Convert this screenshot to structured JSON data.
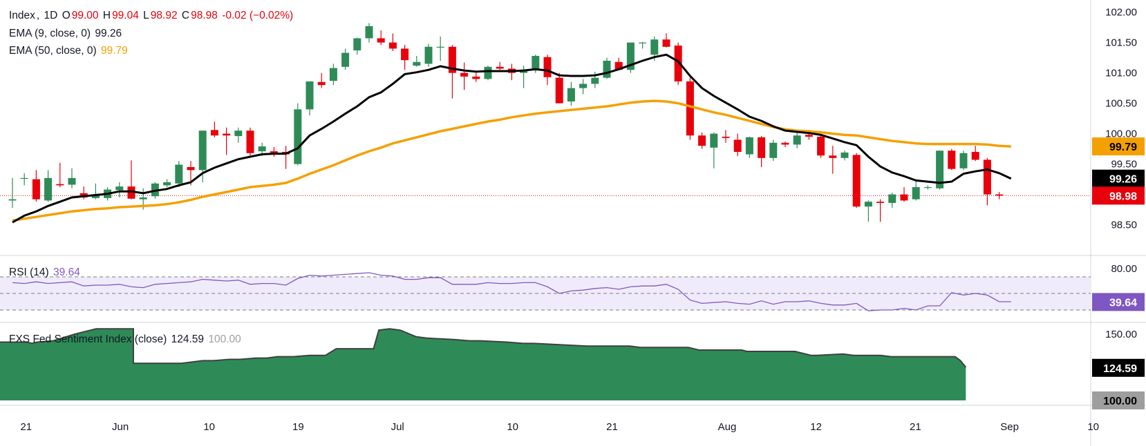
{
  "legend": {
    "symbol": "Index",
    "interval": "1D",
    "open_label": "O",
    "open": "99.00",
    "high_label": "H",
    "high": "99.04",
    "low_label": "L",
    "low": "98.92",
    "close_label": "C",
    "close": "98.98",
    "change": "-0.02 (−0.02%)",
    "ema9_label": "EMA (9, close, 0)",
    "ema9_value": "99.26",
    "ema50_label": "EMA (50, close, 0)",
    "ema50_value": "99.79",
    "rsi_label": "RSI (14)",
    "rsi_value": "39.64",
    "fxs_label": "FXS Fed Sentiment Index (close)",
    "fxs_value": "124.59",
    "fxs_baseline": "100.00"
  },
  "price_badges": [
    {
      "label": "99.79",
      "value": 99.79,
      "bg": "#f4a000",
      "fg": "#000000"
    },
    {
      "label": "99.26",
      "value": 99.26,
      "bg": "#000000",
      "fg": "#ffffff"
    },
    {
      "label": "98.98",
      "value": 98.98,
      "bg": "#e8000b",
      "fg": "#ffffff"
    }
  ],
  "rsi_badge": {
    "label": "39.64",
    "value": 39.64,
    "bg": "#7e57c2",
    "fg": "#ffffff"
  },
  "fxs_badges": [
    {
      "label": "124.59",
      "value": 124.59,
      "bg": "#000000",
      "fg": "#ffffff"
    },
    {
      "label": "100.00",
      "value": 100.0,
      "bg": "#9e9e9e",
      "fg": "#000000"
    }
  ],
  "colors": {
    "up": "#2e8b57",
    "down": "#e8000b",
    "ema9": "#000000",
    "ema50": "#f4a000",
    "rsi": "#7e57c2",
    "rsi_band": "#f0ebfa",
    "fxs_fill": "#2e8b57",
    "fxs_line": "#404040",
    "grid": "#e0e3eb"
  },
  "chart_data": [
    {
      "type": "candlestick",
      "title": "Index, 1D",
      "x_tick_labels": [
        "21",
        "Jun",
        "10",
        "19",
        "Jul",
        "10",
        "21",
        "Aug",
        "12",
        "21",
        "Sep",
        "10"
      ],
      "y_ticks": [
        "102.00",
        "101.50",
        "101.00",
        "100.50",
        "100.00",
        "99.50",
        "98.50"
      ],
      "ylim": [
        98.2,
        102.2
      ],
      "last_price_line": 98.98,
      "candles": [
        [
          98.9,
          99.27,
          98.78,
          98.92
        ],
        [
          99.27,
          99.35,
          99.15,
          99.27
        ],
        [
          99.25,
          99.4,
          98.88,
          98.92
        ],
        [
          98.9,
          99.4,
          98.88,
          99.27
        ],
        [
          99.17,
          99.52,
          99.12,
          99.15
        ],
        [
          99.16,
          99.43,
          99.1,
          99.27
        ],
        [
          99.02,
          99.13,
          98.92,
          98.95
        ],
        [
          98.94,
          99.18,
          98.92,
          99.0
        ],
        [
          98.94,
          99.12,
          98.9,
          99.08
        ],
        [
          99.07,
          99.2,
          98.95,
          99.13
        ],
        [
          99.13,
          99.56,
          98.92,
          98.93
        ],
        [
          98.92,
          99.1,
          98.75,
          98.95
        ],
        [
          98.97,
          99.2,
          98.93,
          99.18
        ],
        [
          99.15,
          99.25,
          99.12,
          99.2
        ],
        [
          99.18,
          99.55,
          99.12,
          99.49
        ],
        [
          99.45,
          99.55,
          99.15,
          99.4
        ],
        [
          99.4,
          100.05,
          99.2,
          100.05
        ],
        [
          100.06,
          100.2,
          99.94,
          99.97
        ],
        [
          100.0,
          100.1,
          99.65,
          99.97
        ],
        [
          99.96,
          100.1,
          99.85,
          100.05
        ],
        [
          100.05,
          100.1,
          99.64,
          99.68
        ],
        [
          99.71,
          99.85,
          99.63,
          99.79
        ],
        [
          99.71,
          99.78,
          99.62,
          99.67
        ],
        [
          99.7,
          99.8,
          99.42,
          99.66
        ],
        [
          99.5,
          100.5,
          99.48,
          100.4
        ],
        [
          100.4,
          100.86,
          100.3,
          100.86
        ],
        [
          100.85,
          101.0,
          100.75,
          100.8
        ],
        [
          100.87,
          101.15,
          100.8,
          101.08
        ],
        [
          101.1,
          101.4,
          101.05,
          101.33
        ],
        [
          101.37,
          101.58,
          101.3,
          101.57
        ],
        [
          101.57,
          101.82,
          101.5,
          101.77
        ],
        [
          101.57,
          101.7,
          101.46,
          101.5
        ],
        [
          101.5,
          101.65,
          101.36,
          101.4
        ],
        [
          101.4,
          101.46,
          101.05,
          101.21
        ],
        [
          101.12,
          101.28,
          101.1,
          101.18
        ],
        [
          101.15,
          101.48,
          101.1,
          101.43
        ],
        [
          101.43,
          101.6,
          101.2,
          101.43
        ],
        [
          101.43,
          101.46,
          100.58,
          101.0
        ],
        [
          101.0,
          101.17,
          100.72,
          100.94
        ],
        [
          100.94,
          101.0,
          100.85,
          100.9
        ],
        [
          100.9,
          101.12,
          100.88,
          101.1
        ],
        [
          101.1,
          101.18,
          101.05,
          101.07
        ],
        [
          101.07,
          101.15,
          100.88,
          101.0
        ],
        [
          101.0,
          101.12,
          100.75,
          101.04
        ],
        [
          101.04,
          101.3,
          101.0,
          101.28
        ],
        [
          101.26,
          101.3,
          100.8,
          100.93
        ],
        [
          100.92,
          101.0,
          100.5,
          100.5
        ],
        [
          100.53,
          100.85,
          100.46,
          100.75
        ],
        [
          100.75,
          100.9,
          100.65,
          100.82
        ],
        [
          100.82,
          101.02,
          100.75,
          100.92
        ],
        [
          100.92,
          101.25,
          100.9,
          101.2
        ],
        [
          101.18,
          101.25,
          101.05,
          101.05
        ],
        [
          101.05,
          101.5,
          101.0,
          101.5
        ],
        [
          101.5,
          101.51,
          101.4,
          101.5
        ],
        [
          101.3,
          101.6,
          101.2,
          101.55
        ],
        [
          101.55,
          101.65,
          101.42,
          101.43
        ],
        [
          101.45,
          101.5,
          100.8,
          100.86
        ],
        [
          100.86,
          100.92,
          99.9,
          99.97
        ],
        [
          99.97,
          100.02,
          99.75,
          99.8
        ],
        [
          99.77,
          100.02,
          99.43,
          100.0
        ],
        [
          99.95,
          100.06,
          99.85,
          99.93
        ],
        [
          99.9,
          100.0,
          99.63,
          99.7
        ],
        [
          99.66,
          99.95,
          99.6,
          99.94
        ],
        [
          99.94,
          99.96,
          99.45,
          99.6
        ],
        [
          99.6,
          99.9,
          99.55,
          99.85
        ],
        [
          99.85,
          99.87,
          99.78,
          99.82
        ],
        [
          99.82,
          100.05,
          99.76,
          99.97
        ],
        [
          99.98,
          100.06,
          99.9,
          99.95
        ],
        [
          99.95,
          99.98,
          99.6,
          99.64
        ],
        [
          99.64,
          99.8,
          99.34,
          99.6
        ],
        [
          99.6,
          99.72,
          99.56,
          99.69
        ],
        [
          99.65,
          99.68,
          98.78,
          98.8
        ],
        [
          98.8,
          98.9,
          98.55,
          98.88
        ],
        [
          98.88,
          98.92,
          98.55,
          98.86
        ],
        [
          98.86,
          99.03,
          98.78,
          99.0
        ],
        [
          99.0,
          99.12,
          98.88,
          98.9
        ],
        [
          98.92,
          99.25,
          98.9,
          99.12
        ],
        [
          99.12,
          99.15,
          99.08,
          99.12
        ],
        [
          99.1,
          99.72,
          99.08,
          99.72
        ],
        [
          99.72,
          99.75,
          99.4,
          99.42
        ],
        [
          99.43,
          99.72,
          99.4,
          99.68
        ],
        [
          99.7,
          99.8,
          99.55,
          99.57
        ],
        [
          99.57,
          99.6,
          98.82,
          99.0
        ],
        [
          99.0,
          99.04,
          98.92,
          98.98
        ]
      ],
      "ema9": [
        98.54,
        98.65,
        98.72,
        98.81,
        98.88,
        98.95,
        98.97,
        98.99,
        99.01,
        99.05,
        99.05,
        99.02,
        99.06,
        99.09,
        99.15,
        99.2,
        99.35,
        99.44,
        99.51,
        99.58,
        99.62,
        99.66,
        99.67,
        99.67,
        99.76,
        99.97,
        100.08,
        100.2,
        100.33,
        100.45,
        100.6,
        100.68,
        100.82,
        100.98,
        101.01,
        101.05,
        101.11,
        101.07,
        101.04,
        101.02,
        101.03,
        101.03,
        101.03,
        101.04,
        101.06,
        101.04,
        100.96,
        100.95,
        100.95,
        100.96,
        101.0,
        101.06,
        101.13,
        101.2,
        101.26,
        101.3,
        101.19,
        100.95,
        100.75,
        100.62,
        100.51,
        100.4,
        100.28,
        100.21,
        100.12,
        100.05,
        100.03,
        100.01,
        99.98,
        99.92,
        99.86,
        99.81,
        99.62,
        99.46,
        99.36,
        99.3,
        99.23,
        99.21,
        99.19,
        99.21,
        99.34,
        99.38,
        99.41,
        99.35,
        99.26
      ],
      "ema50": [
        98.57,
        98.6,
        98.63,
        98.66,
        98.69,
        98.72,
        98.74,
        98.76,
        98.77,
        98.79,
        98.8,
        98.81,
        98.82,
        98.84,
        98.87,
        98.91,
        98.96,
        99.0,
        99.04,
        99.08,
        99.12,
        99.14,
        99.16,
        99.19,
        99.26,
        99.34,
        99.41,
        99.48,
        99.56,
        99.64,
        99.71,
        99.77,
        99.84,
        99.89,
        99.94,
        99.99,
        100.04,
        100.08,
        100.12,
        100.16,
        100.2,
        100.23,
        100.27,
        100.3,
        100.33,
        100.35,
        100.37,
        100.39,
        100.41,
        100.43,
        100.45,
        100.48,
        100.51,
        100.53,
        100.54,
        100.53,
        100.5,
        100.45,
        100.4,
        100.35,
        100.31,
        100.26,
        100.21,
        100.16,
        100.11,
        100.07,
        100.05,
        100.04,
        100.02,
        100.0,
        99.98,
        99.97,
        99.94,
        99.91,
        99.88,
        99.86,
        99.84,
        99.83,
        99.83,
        99.83,
        99.83,
        99.83,
        99.82,
        99.8,
        99.79
      ]
    },
    {
      "type": "line",
      "title": "RSI (14)",
      "y_ticks": [
        "80.00"
      ],
      "ylim": [
        20,
        80
      ],
      "band": [
        30,
        70
      ],
      "mid": 50,
      "values": [
        63,
        62,
        64,
        62,
        63,
        64,
        59,
        60,
        60,
        61,
        58,
        57,
        61,
        62,
        63,
        64,
        67,
        66,
        65,
        66,
        61,
        62,
        62,
        60,
        68,
        72,
        71,
        72,
        73,
        74,
        75,
        72,
        71,
        67,
        67,
        69,
        69,
        61,
        61,
        61,
        63,
        62,
        62,
        63,
        63,
        58,
        50,
        53,
        54,
        56,
        57,
        55,
        58,
        59,
        59,
        61,
        55,
        42,
        38,
        39,
        40,
        38,
        37,
        41,
        37,
        40,
        40,
        41,
        38,
        36,
        36,
        38,
        29,
        30,
        30,
        32,
        30,
        35,
        35,
        51,
        48,
        50,
        48,
        40,
        40
      ]
    },
    {
      "type": "area",
      "title": "FXS Fed Sentiment Index (close)",
      "y_ticks": [
        "150.00"
      ],
      "ylim": [
        100,
        155
      ],
      "baseline": 100,
      "points": [
        [
          0,
          144
        ],
        [
          5,
          144
        ],
        [
          6,
          143
        ],
        [
          7,
          144
        ],
        [
          10,
          145
        ],
        [
          14,
          150
        ],
        [
          17,
          153
        ],
        [
          18,
          154
        ],
        [
          25,
          154
        ],
        [
          25,
          128
        ],
        [
          34,
          128
        ],
        [
          38,
          130
        ],
        [
          40,
          130
        ],
        [
          43,
          131
        ],
        [
          45,
          131
        ],
        [
          48,
          132
        ],
        [
          50,
          132
        ],
        [
          52,
          133
        ],
        [
          55,
          133
        ],
        [
          58,
          134
        ],
        [
          61,
          134
        ],
        [
          63,
          139
        ],
        [
          70,
          139
        ],
        [
          71,
          153
        ],
        [
          73,
          154
        ],
        [
          75,
          153
        ],
        [
          78,
          148
        ],
        [
          80,
          147
        ],
        [
          85,
          146
        ],
        [
          88,
          145
        ],
        [
          90,
          145
        ],
        [
          95,
          144
        ],
        [
          98,
          143
        ],
        [
          100,
          143
        ],
        [
          110,
          141
        ],
        [
          118,
          141
        ],
        [
          120,
          140
        ],
        [
          129,
          140
        ],
        [
          131,
          138
        ],
        [
          139,
          138
        ],
        [
          140,
          137
        ],
        [
          149,
          137
        ],
        [
          152,
          134
        ],
        [
          153,
          134
        ],
        [
          158,
          135
        ],
        [
          160,
          134
        ],
        [
          165,
          134
        ],
        [
          167,
          133
        ],
        [
          170,
          133
        ],
        [
          176,
          133
        ],
        [
          177,
          133
        ],
        [
          179,
          133
        ],
        [
          180,
          130
        ],
        [
          181,
          125
        ]
      ]
    }
  ]
}
